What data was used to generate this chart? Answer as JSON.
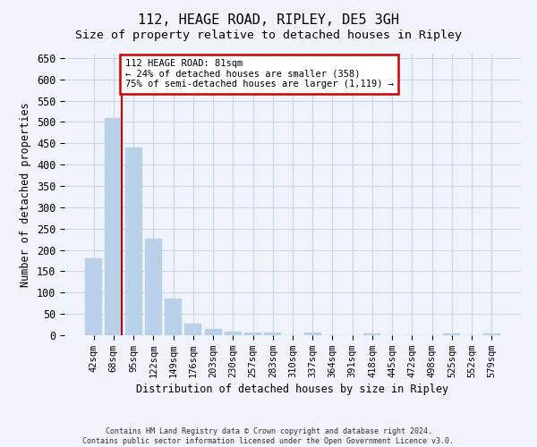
{
  "title": "112, HEAGE ROAD, RIPLEY, DE5 3GH",
  "subtitle": "Size of property relative to detached houses in Ripley",
  "xlabel": "Distribution of detached houses by size in Ripley",
  "ylabel": "Number of detached properties",
  "categories": [
    "42sqm",
    "68sqm",
    "95sqm",
    "122sqm",
    "149sqm",
    "176sqm",
    "203sqm",
    "230sqm",
    "257sqm",
    "283sqm",
    "310sqm",
    "337sqm",
    "364sqm",
    "391sqm",
    "418sqm",
    "445sqm",
    "472sqm",
    "498sqm",
    "525sqm",
    "552sqm",
    "579sqm"
  ],
  "values": [
    180,
    510,
    440,
    227,
    85,
    28,
    14,
    9,
    7,
    6,
    0,
    6,
    0,
    0,
    5,
    0,
    0,
    0,
    5,
    0,
    5
  ],
  "bar_color": "#b8d0e8",
  "bar_edge_color": "#b8d0e8",
  "grid_color": "#c8d4e8",
  "property_line_x": 1.42,
  "annotation_text": "112 HEAGE ROAD: 81sqm\n← 24% of detached houses are smaller (358)\n75% of semi-detached houses are larger (1,119) →",
  "annotation_box_color": "#ffffff",
  "annotation_box_edge_color": "#cc0000",
  "property_line_color": "#cc0000",
  "ylim": [
    0,
    660
  ],
  "yticks": [
    0,
    50,
    100,
    150,
    200,
    250,
    300,
    350,
    400,
    450,
    500,
    550,
    600,
    650
  ],
  "footer": "Contains HM Land Registry data © Crown copyright and database right 2024.\nContains public sector information licensed under the Open Government Licence v3.0.",
  "background_color": "#f0f4fa",
  "axes_background_color": "#f0f4fa",
  "title_fontsize": 11,
  "subtitle_fontsize": 9.5
}
